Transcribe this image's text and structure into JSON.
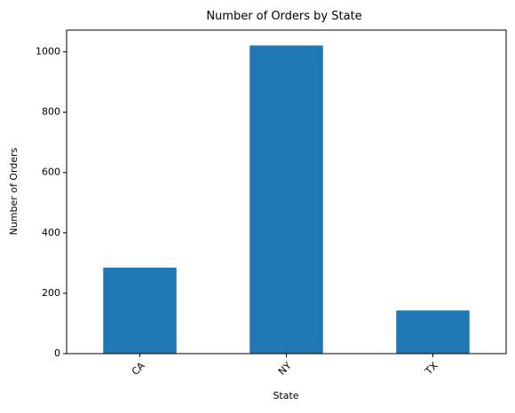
{
  "chart_data": {
    "type": "bar",
    "title": "Number of Orders by State",
    "xlabel": "State",
    "ylabel": "Number of Orders",
    "categories": [
      "CA",
      "NY",
      "TX"
    ],
    "values": [
      285,
      1021,
      143
    ],
    "ylim": [
      0,
      1072
    ],
    "yticks": [
      0,
      200,
      400,
      600,
      800,
      1000
    ],
    "bar_color": "#1f77b4",
    "grid": false,
    "legend": "none",
    "xtick_rotation_deg": 45
  }
}
